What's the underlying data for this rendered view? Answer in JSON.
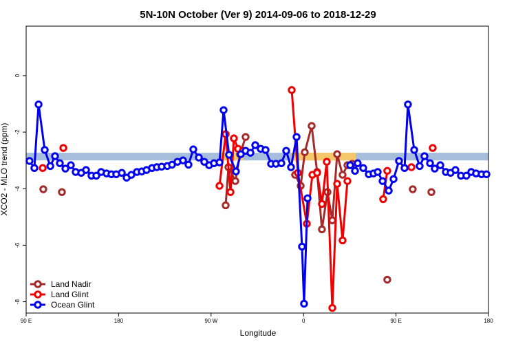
{
  "chart_data": {
    "type": "line",
    "title": "5N-10N October (Ver 9)   2014-09-06 to 2018-12-29",
    "x_label": "Longitude",
    "y_label": "XCO2 - MLO trend (ppm)",
    "xlim": [
      90,
      540
    ],
    "ylim": [
      -8.4,
      1.75
    ],
    "xticks": [
      {
        "value": 90,
        "label": "90 E"
      },
      {
        "value": 180,
        "label": "180"
      },
      {
        "value": 270,
        "label": "90 W"
      },
      {
        "value": 360,
        "label": "0"
      },
      {
        "value": 450,
        "label": "90 E"
      },
      {
        "value": 540,
        "label": "180"
      }
    ],
    "yticks": [
      0,
      -2,
      -4,
      -6,
      -8
    ],
    "legend": "bottom-left",
    "band": {
      "ylim": [
        -3.0,
        -2.73
      ],
      "color": "#a6bddb",
      "highlight_color": "#f5c96b",
      "highlights": [
        [
          280,
          301.6
        ],
        [
          348.5,
          410.8
        ]
      ]
    },
    "series": [
      {
        "name": "Land Nadir",
        "color": "#a52a2a",
        "x": [
          106.7,
          115,
          124.8,
          200,
          284.2,
          286.9,
          293.6,
          298.2,
          303.6,
          330,
          351.8,
          357.2,
          361.2,
          367.9,
          373.2,
          377.9,
          383.3,
          388.0,
          392.7,
          398.0,
          402.7,
          407.4,
          425,
          441.5,
          455,
          466.3,
          475,
          484.4
        ],
        "values": [
          -4.02,
          null,
          -4.12,
          null,
          -4.59,
          -3.24,
          -3.73,
          -2.78,
          -2.17,
          null,
          -3.51,
          -3.9,
          -2.71,
          -1.78,
          -3.41,
          -5.44,
          -4.12,
          -5.12,
          -2.78,
          -3.51,
          -3.17,
          -3.12,
          null,
          -7.22,
          null,
          -4.02,
          null,
          -4.12
        ]
      },
      {
        "name": "Land Glint",
        "color": "#ee0000",
        "x": [
          106.1,
          116,
          126.2,
          200,
          278.2,
          284.2,
          288.9,
          292.2,
          296.2,
          300.9,
          325,
          348.5,
          354.5,
          363.2,
          368.6,
          373.2,
          377.9,
          382.6,
          388.0,
          392.7,
          398.0,
          402.7,
          420,
          437.5,
          441.5,
          453,
          465.0,
          475,
          485.7
        ],
        "values": [
          -3.27,
          null,
          -2.56,
          null,
          -3.9,
          -2.07,
          -4.12,
          -2.22,
          -2.59,
          -2.66,
          null,
          -0.51,
          -3.44,
          -5.24,
          -3.51,
          -3.44,
          -4.54,
          -3.05,
          -8.22,
          -3.83,
          -5.83,
          -3.73,
          null,
          -4.37,
          -3.37,
          null,
          -3.24,
          null,
          -2.56
        ]
      },
      {
        "name": "Ocean Glint",
        "color": "#0000ee",
        "x": [
          93.3,
          98.0,
          102.1,
          108.1,
          113.5,
          118.1,
          122.8,
          128.2,
          133.5,
          138.2,
          143.6,
          148.3,
          153.6,
          158.3,
          163.0,
          168.3,
          173.0,
          177.7,
          183.1,
          187.8,
          192.4,
          197.8,
          202.5,
          207.2,
          212.5,
          217.2,
          221.9,
          227.3,
          232.0,
          237.3,
          242.7,
          248.0,
          252.7,
          258.1,
          263.4,
          268.1,
          272.8,
          278.2,
          282.2,
          287.5,
          294.2,
          298.9,
          303.6,
          308.3,
          313.0,
          318.3,
          323.0,
          328.4,
          333.1,
          338.4,
          343.1,
          347.8,
          353.2,
          358.5,
          360.5,
          363.9,
          385,
          405.4,
          410.1,
          412.7,
          418.1,
          423.5,
          428.1,
          432.2,
          436.9,
          442.9,
          447.6,
          452.9,
          458.3,
          461.6,
          467.7,
          473.0,
          477.7,
          483.1,
          487.7,
          493.1,
          498.5,
          503.1,
          507.8,
          513.2,
          518.5,
          523.2,
          527.9,
          533.3,
          538.0
        ],
        "values": [
          -3.02,
          -3.27,
          -1.02,
          -2.63,
          -3.2,
          -2.85,
          -3.1,
          -3.29,
          -3.17,
          -3.41,
          -3.44,
          -3.34,
          -3.54,
          -3.54,
          -3.41,
          -3.46,
          -3.49,
          -3.49,
          -3.44,
          -3.61,
          -3.51,
          -3.41,
          -3.39,
          -3.34,
          -3.27,
          -3.24,
          -3.22,
          -3.2,
          -3.15,
          -3.05,
          -3.0,
          -3.15,
          -2.61,
          -2.9,
          -3.05,
          -3.17,
          -3.1,
          -3.07,
          -1.22,
          -2.8,
          -3.39,
          -2.78,
          -2.66,
          -2.73,
          -2.46,
          -2.59,
          -2.63,
          -3.12,
          -3.12,
          -3.1,
          -2.66,
          -3.24,
          -2.17,
          -6.05,
          -8.07,
          -4.34,
          null,
          -3.17,
          -3.37,
          -3.1,
          -3.27,
          -3.49,
          -3.46,
          -3.41,
          -3.73,
          -4.07,
          -3.66,
          -3.02,
          -3.27,
          -1.02,
          -2.63,
          -3.2,
          -2.85,
          -3.1,
          -3.29,
          -3.17,
          -3.41,
          -3.44,
          -3.34,
          -3.54,
          -3.54,
          -3.41,
          -3.46,
          -3.49,
          -3.49
        ]
      }
    ]
  }
}
